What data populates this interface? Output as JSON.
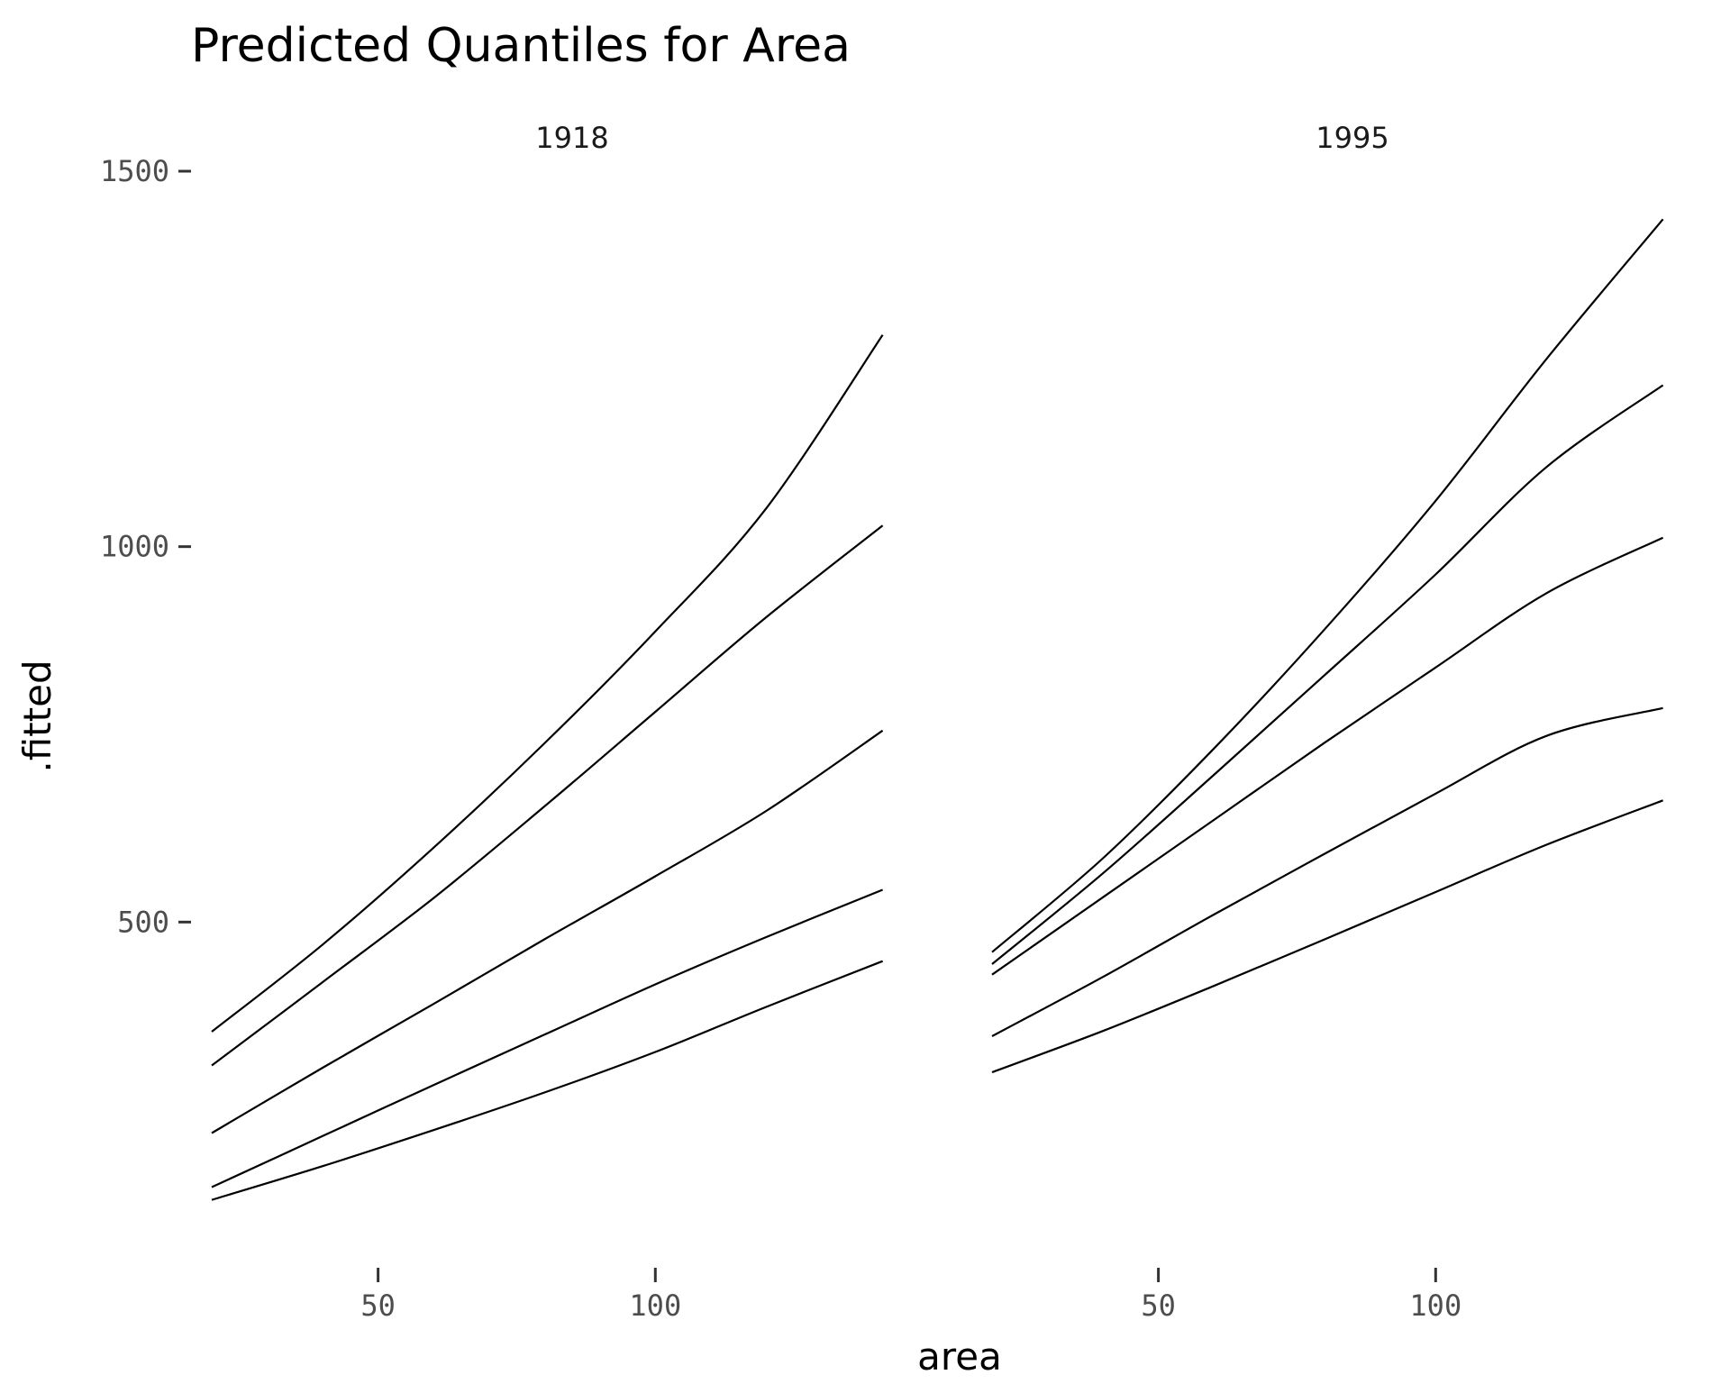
{
  "chart_data": {
    "type": "line",
    "title": "Predicted Quantiles for Area",
    "xlabel": "area",
    "ylabel": ".fitted",
    "x_ticks": [
      50,
      100
    ],
    "y_ticks": [
      500,
      1000,
      1500
    ],
    "xlim": [
      20,
      150
    ],
    "ylim": [
      60,
      1560
    ],
    "panels": [
      {
        "label": "1918",
        "x": [
          20,
          40,
          60,
          80,
          100,
          120,
          141
        ],
        "series": [
          {
            "values": [
              130,
              175,
              223,
              273,
              327,
              387,
              448
            ]
          },
          {
            "values": [
              147,
              215,
              283,
              350,
              417,
              480,
              543
            ]
          },
          {
            "values": [
              219,
              306,
              391,
              477,
              561,
              648,
              755
            ]
          },
          {
            "values": [
              309,
              420,
              532,
              654,
              780,
              906,
              1028
            ]
          },
          {
            "values": [
              354,
              470,
              599,
              738,
              887,
              1051,
              1282
            ]
          }
        ]
      },
      {
        "label": "1995",
        "x": [
          20,
          40,
          60,
          80,
          100,
          120,
          141
        ],
        "series": [
          {
            "values": [
              300,
              355,
              415,
              477,
              540,
              603,
              662
            ]
          },
          {
            "values": [
              348,
              427,
              510,
              591,
              671,
              748,
              785
            ]
          },
          {
            "values": [
              430,
              533,
              636,
              739,
              839,
              938,
              1012
            ]
          },
          {
            "values": [
              444,
              565,
              696,
              829,
              963,
              1106,
              1215
            ]
          },
          {
            "values": [
              460,
              585,
              731,
              890,
              1061,
              1250,
              1436
            ]
          }
        ]
      }
    ]
  }
}
